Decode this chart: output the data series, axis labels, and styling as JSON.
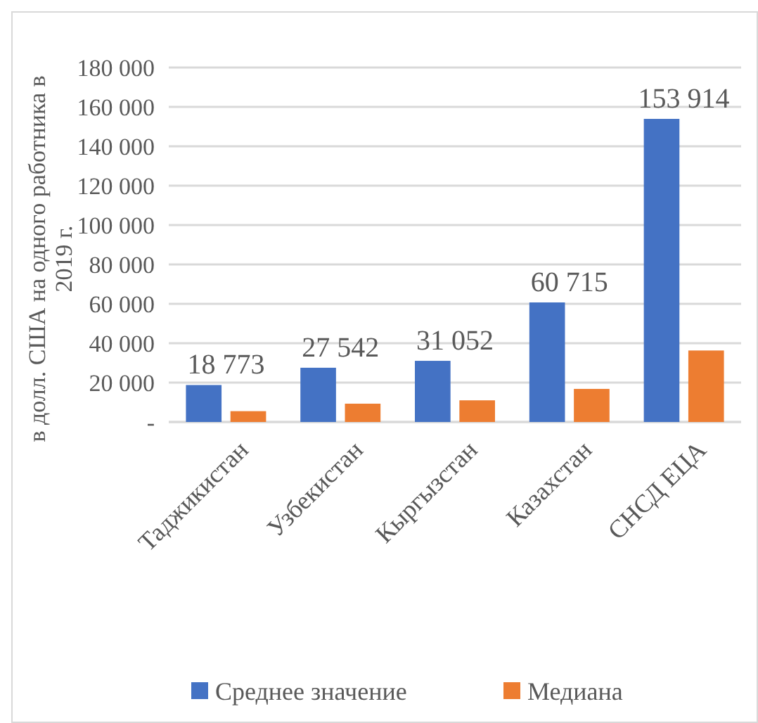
{
  "chart_data": {
    "type": "bar",
    "ylabel": "в долл. США на одного работника в 2019 г.",
    "categories": [
      "Таджикистан",
      "Узбекистан",
      "Кыргызстан",
      "Казахстан",
      "СНСД ЕЦА"
    ],
    "series": [
      {
        "name": "Среднее значение",
        "color": "#4472c4",
        "values": [
          18773,
          27542,
          31052,
          60715,
          153914
        ],
        "value_labels": [
          "18 773",
          "27 542",
          "31 052",
          "60 715",
          "153 914"
        ]
      },
      {
        "name": "Медиана",
        "color": "#ed7d31",
        "values": [
          5500,
          9300,
          11000,
          16800,
          36300
        ]
      }
    ],
    "ylim": [
      0,
      180000
    ],
    "yticks": [
      {
        "value": 0,
        "label": "-"
      },
      {
        "value": 20000,
        "label": "20 000"
      },
      {
        "value": 40000,
        "label": "40 000"
      },
      {
        "value": 60000,
        "label": "60 000"
      },
      {
        "value": 80000,
        "label": "80 000"
      },
      {
        "value": 100000,
        "label": "100 000"
      },
      {
        "value": 120000,
        "label": "120 000"
      },
      {
        "value": 140000,
        "label": "140 000"
      },
      {
        "value": 160000,
        "label": "160 000"
      },
      {
        "value": 180000,
        "label": "180 000"
      }
    ],
    "grid": "y",
    "legend": "bottom"
  }
}
